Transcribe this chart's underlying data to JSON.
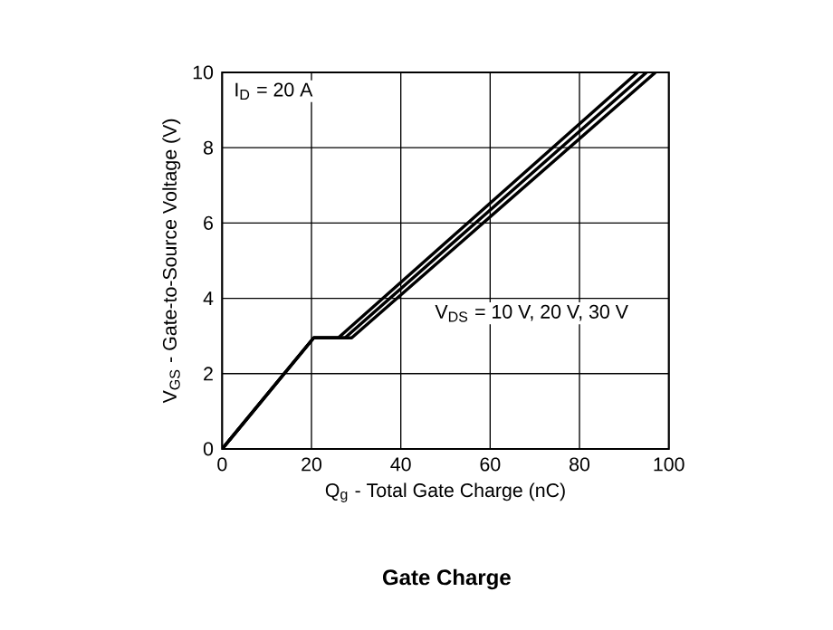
{
  "chart_data": {
    "type": "line",
    "title": "Gate Charge",
    "xlabel": "Q$_{g}$ - Total Gate Charge (nC)",
    "ylabel": "V$_{GS}$ - Gate-to-Source Voltage (V)",
    "annotations": [
      "I$_{D}$ = 20 A",
      "V$_{DS}$ = 10 V, 20 V, 30 V"
    ],
    "series": [
      {
        "color": "#000000",
        "x": [
          0,
          20.5,
          26,
          93
        ],
        "values": [
          0,
          2.95,
          2.95,
          10
        ]
      },
      {
        "color": "#000000",
        "x": [
          0,
          20.5,
          27.5,
          95
        ],
        "values": [
          0,
          2.95,
          2.95,
          10
        ]
      },
      {
        "color": "#000000",
        "x": [
          0,
          20.5,
          29,
          97
        ],
        "values": [
          0,
          2.95,
          2.95,
          10
        ]
      }
    ],
    "xlim": [
      0,
      100
    ],
    "ylim": [
      0,
      10
    ],
    "xticks": [
      0,
      20,
      40,
      60,
      80,
      100
    ],
    "yticks": [
      0,
      2,
      4,
      6,
      8,
      10
    ],
    "grid": true,
    "marker": "none",
    "line_style": "solid"
  }
}
